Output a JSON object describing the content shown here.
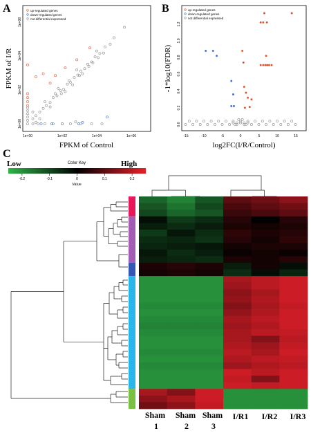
{
  "panels": {
    "a": "A",
    "b": "B",
    "c": "C"
  },
  "colors": {
    "up": "#e0502a",
    "down": "#3a6fd8",
    "neutral": "#888888",
    "key_low": "#2fb44a",
    "key_mid": "#000000",
    "key_high": "#e8202a"
  },
  "chart_data": [
    {
      "panel": "A",
      "type": "scatter",
      "x_scale": "log",
      "y_scale": "log",
      "xlabel": "FPKM of Control",
      "ylabel": "FPKM of I/R",
      "x_ticks": [
        "1e+00",
        "1e+02",
        "1e+04",
        "1e+06"
      ],
      "y_ticks": [
        "1e+00",
        "1e+02",
        "1e+04",
        "1e+06"
      ],
      "xlim": [
        1,
        1000000
      ],
      "ylim": [
        1,
        1000000
      ],
      "legend": {
        "placement": "top-left",
        "entries": [
          "up-regulated genes",
          "down-regulated genes",
          "not differential expressed"
        ]
      },
      "series": [
        {
          "name": "up-regulated genes",
          "points": [
            [
              1,
              3000
            ],
            [
              1,
              60
            ],
            [
              1,
              35
            ],
            [
              1,
              20
            ],
            [
              1,
              12
            ],
            [
              3,
              600
            ],
            [
              8,
              900
            ],
            [
              40,
              700
            ],
            [
              150,
              2000
            ],
            [
              700,
              6000
            ],
            [
              4000,
              30000
            ],
            [
              20,
              250
            ]
          ]
        },
        {
          "name": "down-regulated genes",
          "points": [
            [
              900,
              1
            ],
            [
              25,
              1
            ],
            [
              1500,
              1.2
            ],
            [
              40000,
              2.5
            ],
            [
              6,
              1
            ]
          ]
        },
        {
          "name": "not differential expressed",
          "points": [
            [
              1,
              1
            ],
            [
              1,
              1.6
            ],
            [
              1,
              2.5
            ],
            [
              1,
              4
            ],
            [
              1,
              6
            ],
            [
              1,
              9
            ],
            [
              2,
              1
            ],
            [
              4,
              1
            ],
            [
              10,
              1
            ],
            [
              30,
              1
            ],
            [
              100,
              1
            ],
            [
              300,
              1
            ],
            [
              1200,
              1
            ],
            [
              5000,
              1
            ],
            [
              20000,
              1
            ],
            [
              2,
              2
            ],
            [
              3,
              3
            ],
            [
              5,
              5
            ],
            [
              8,
              8
            ],
            [
              12,
              12
            ],
            [
              20,
              18
            ],
            [
              30,
              35
            ],
            [
              50,
              45
            ],
            [
              80,
              90
            ],
            [
              120,
              110
            ],
            [
              200,
              220
            ],
            [
              300,
              280
            ],
            [
              500,
              550
            ],
            [
              800,
              750
            ],
            [
              1200,
              1300
            ],
            [
              2000,
              1800
            ],
            [
              3000,
              3300
            ],
            [
              5000,
              4500
            ],
            [
              8000,
              9000
            ],
            [
              15000,
              14000
            ],
            [
              30000,
              35000
            ],
            [
              60000,
              50000
            ],
            [
              100000,
              120000
            ],
            [
              400000,
              500000
            ],
            [
              10,
              20
            ],
            [
              20,
              10
            ],
            [
              60,
              120
            ],
            [
              150,
              80
            ],
            [
              400,
              200
            ],
            [
              700,
              1500
            ],
            [
              1500,
              900
            ],
            [
              6000,
              4000
            ],
            [
              10000,
              20000
            ],
            [
              2,
              5
            ],
            [
              5,
              2
            ],
            [
              40,
              60
            ],
            [
              90,
              60
            ],
            [
              250,
              350
            ],
            [
              1000,
              700
            ],
            [
              3500,
              2500
            ],
            [
              12000,
              8000
            ],
            [
              25000,
              15000
            ],
            [
              100,
              1
            ],
            [
              600,
              1.3
            ],
            [
              3,
              1.2
            ]
          ]
        }
      ]
    },
    {
      "panel": "B",
      "type": "scatter",
      "xlabel": "log2FC(I/R/Control)",
      "ylabel": "-1*log10(FDR)",
      "x_ticks": [
        "-15",
        "-10",
        "-5",
        "0",
        "5",
        "10",
        "15"
      ],
      "y_ticks": [
        "0.0",
        "0.2",
        "0.4",
        "0.6",
        "0.8",
        "1.0",
        "1.2"
      ],
      "xlim": [
        -17,
        17
      ],
      "ylim": [
        0,
        1.4
      ],
      "legend": {
        "placement": "top-left",
        "entries": [
          "up-regulated genes",
          "down-regulated genes",
          "not differential expressed"
        ]
      },
      "series": [
        {
          "name": "up-regulated genes",
          "points": [
            [
              6.5,
              1.33
            ],
            [
              14,
              1.33
            ],
            [
              5.5,
              1.22
            ],
            [
              6.2,
              1.22
            ],
            [
              7.2,
              1.22
            ],
            [
              7,
              0.82
            ],
            [
              5.5,
              0.71
            ],
            [
              6.2,
              0.71
            ],
            [
              6.8,
              0.71
            ],
            [
              7.3,
              0.71
            ],
            [
              7.8,
              0.71
            ],
            [
              8.5,
              0.71
            ],
            [
              0.5,
              0.88
            ],
            [
              0.8,
              0.74
            ],
            [
              1,
              0.45
            ],
            [
              1.5,
              0.38
            ],
            [
              2,
              0.32
            ],
            [
              3,
              0.3
            ],
            [
              2.5,
              0.21
            ],
            [
              1.2,
              0.2
            ]
          ]
        },
        {
          "name": "down-regulated genes",
          "points": [
            [
              -9.5,
              0.88
            ],
            [
              -7.5,
              0.88
            ],
            [
              -6.5,
              0.82
            ],
            [
              -2.5,
              0.52
            ],
            [
              -2,
              0.36
            ],
            [
              -2.5,
              0.22
            ],
            [
              -1.8,
              0.22
            ]
          ]
        },
        {
          "name": "not differential expressed",
          "points": [
            [
              -14,
              0.04
            ],
            [
              -12,
              0.04
            ],
            [
              -10,
              0.04
            ],
            [
              -8,
              0.04
            ],
            [
              -6,
              0.04
            ],
            [
              -4,
              0.04
            ],
            [
              -2,
              0.04
            ],
            [
              0,
              0.04
            ],
            [
              2,
              0.04
            ],
            [
              4,
              0.04
            ],
            [
              6,
              0.04
            ],
            [
              8,
              0.04
            ],
            [
              10,
              0.04
            ],
            [
              12,
              0.04
            ],
            [
              14,
              0.04
            ],
            [
              -15,
              0.0
            ],
            [
              -13,
              0.0
            ],
            [
              -11,
              0.0
            ],
            [
              -9,
              0.0
            ],
            [
              -7,
              0.0
            ],
            [
              -5,
              0.0
            ],
            [
              -3,
              0.0
            ],
            [
              -1,
              0.0
            ],
            [
              1,
              0.0
            ],
            [
              3,
              0.0
            ],
            [
              5,
              0.0
            ],
            [
              7,
              0.0
            ],
            [
              9,
              0.0
            ],
            [
              11,
              0.0
            ],
            [
              13,
              0.0
            ],
            [
              15,
              0.0
            ],
            [
              -2,
              0.02
            ],
            [
              -1,
              0.02
            ],
            [
              0,
              0.02
            ],
            [
              1,
              0.02
            ],
            [
              2,
              0.02
            ],
            [
              -0.5,
              0.06
            ],
            [
              0.5,
              0.06
            ],
            [
              -1.5,
              0.0
            ],
            [
              1.5,
              0.0
            ]
          ]
        }
      ]
    },
    {
      "panel": "C",
      "type": "heatmap",
      "color_key": {
        "title": "Color Key",
        "low_label": "Low",
        "high_label": "High",
        "ticks": [
          "-0.2",
          "-0.1",
          "0",
          "0.1",
          "0.2"
        ],
        "range": [
          -0.25,
          0.25
        ],
        "xlabel": "Value"
      },
      "columns": [
        "Sham 1",
        "Sham 2",
        "Sham 3",
        "I/R1",
        "I/R2",
        "I/R3"
      ],
      "row_groups": [
        {
          "color": "#e8195a",
          "rows": 3
        },
        {
          "color": "#a35db5",
          "rows": 7
        },
        {
          "color": "#3457b5",
          "rows": 2
        },
        {
          "color": "#29b6ea",
          "rows": 17
        },
        {
          "color": "#7ac143",
          "rows": 3
        }
      ],
      "rows": [
        [
          -0.14,
          -0.18,
          -0.12,
          0.1,
          0.12,
          0.15
        ],
        [
          -0.12,
          -0.16,
          -0.1,
          0.08,
          0.1,
          0.12
        ],
        [
          -0.1,
          -0.14,
          -0.12,
          0.06,
          0.08,
          0.1
        ],
        [
          -0.02,
          -0.08,
          -0.06,
          0.04,
          0.0,
          0.04
        ],
        [
          -0.04,
          -0.06,
          -0.04,
          0.03,
          0.02,
          0.03
        ],
        [
          -0.08,
          -0.03,
          -0.06,
          0.05,
          0.03,
          0.04
        ],
        [
          -0.06,
          -0.05,
          -0.07,
          0.04,
          0.02,
          0.05
        ],
        [
          -0.05,
          -0.04,
          -0.03,
          0.02,
          0.03,
          0.03
        ],
        [
          -0.03,
          -0.06,
          -0.04,
          0.01,
          0.02,
          0.01
        ],
        [
          -0.04,
          -0.05,
          -0.06,
          0.03,
          0.02,
          0.04
        ],
        [
          0.03,
          0.04,
          0.03,
          -0.04,
          0.02,
          -0.02
        ],
        [
          0.02,
          0.03,
          0.02,
          -0.06,
          -0.02,
          -0.05
        ],
        [
          -0.2,
          -0.2,
          -0.2,
          0.18,
          0.2,
          0.22
        ],
        [
          -0.2,
          -0.2,
          -0.2,
          0.17,
          0.2,
          0.22
        ],
        [
          -0.2,
          -0.2,
          -0.2,
          0.15,
          0.18,
          0.22
        ],
        [
          -0.2,
          -0.2,
          -0.2,
          0.16,
          0.19,
          0.22
        ],
        [
          -0.19,
          -0.19,
          -0.19,
          0.14,
          0.18,
          0.21
        ],
        [
          -0.2,
          -0.2,
          -0.2,
          0.16,
          0.19,
          0.22
        ],
        [
          -0.19,
          -0.19,
          -0.19,
          0.18,
          0.2,
          0.22
        ],
        [
          -0.18,
          -0.18,
          -0.18,
          0.17,
          0.19,
          0.22
        ],
        [
          -0.19,
          -0.19,
          -0.19,
          0.18,
          0.2,
          0.21
        ],
        [
          -0.2,
          -0.2,
          -0.2,
          0.18,
          0.14,
          0.2
        ],
        [
          -0.2,
          -0.2,
          -0.2,
          0.19,
          0.17,
          0.21
        ],
        [
          -0.19,
          -0.19,
          -0.19,
          0.2,
          0.18,
          0.22
        ],
        [
          -0.2,
          -0.2,
          -0.2,
          0.19,
          0.2,
          0.21
        ],
        [
          -0.19,
          -0.19,
          -0.19,
          0.17,
          0.19,
          0.2
        ],
        [
          -0.2,
          -0.2,
          -0.2,
          0.22,
          0.2,
          0.22
        ],
        [
          -0.2,
          -0.2,
          -0.2,
          0.21,
          0.14,
          0.22
        ],
        [
          -0.2,
          -0.2,
          -0.2,
          0.22,
          0.21,
          0.22
        ],
        [
          0.18,
          0.14,
          0.22,
          -0.2,
          -0.2,
          -0.2
        ],
        [
          0.15,
          0.18,
          0.22,
          -0.2,
          -0.2,
          -0.2
        ],
        [
          0.12,
          0.15,
          0.21,
          -0.2,
          -0.2,
          -0.2
        ]
      ]
    }
  ]
}
